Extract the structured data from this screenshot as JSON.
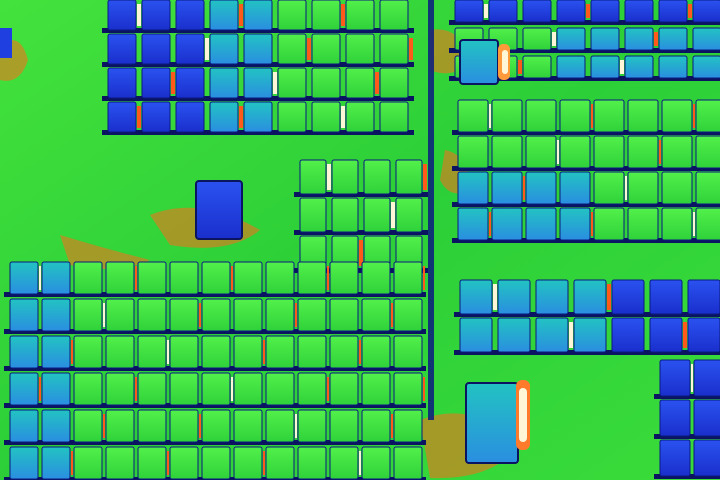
{
  "image": {
    "kind": "thermal-aerial-photo",
    "subject": "solar-panel-array",
    "palette": {
      "ground": "#2fd23a",
      "ground_light": "#5ef03c",
      "panel_cool": "#1f3fe0",
      "panel_mid": "#1fb8c8",
      "panel_warm": "#3ee047",
      "hotspot_orange": "#ff6a1a",
      "hotspot_red": "#e8301a",
      "hotspot_white": "#fff6d8",
      "frame_dark": "#0a1460"
    }
  }
}
